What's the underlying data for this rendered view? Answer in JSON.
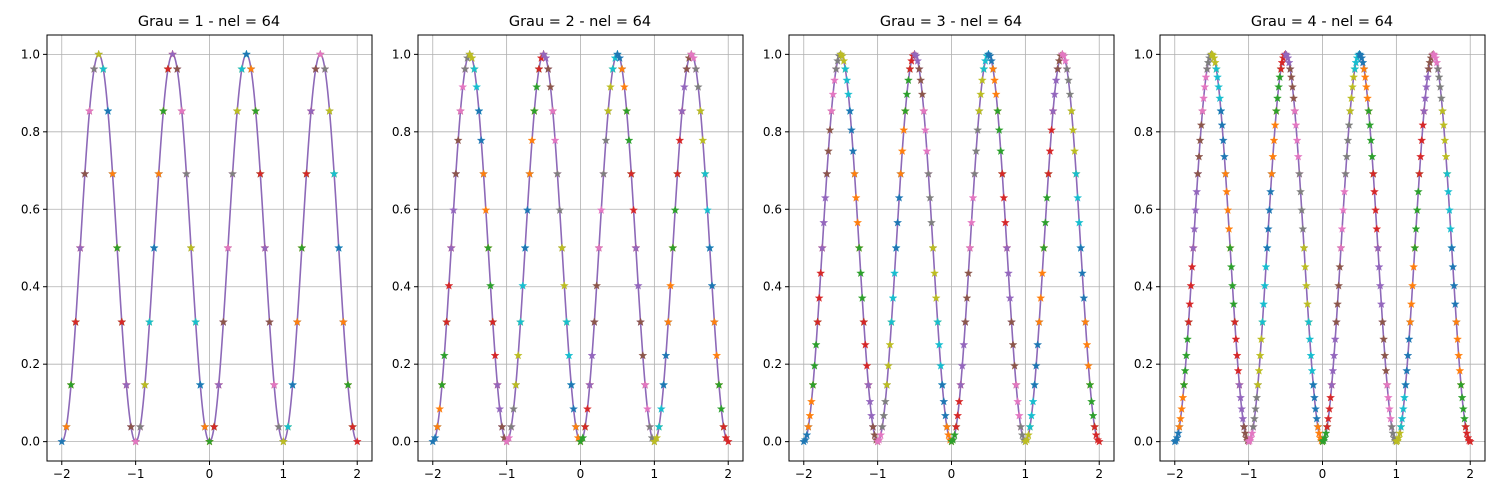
{
  "chart_data": [
    {
      "type": "line",
      "title": "Grau = 1 - nel = 64",
      "xlabel": "",
      "ylabel": "",
      "xlim": [
        -2.2,
        2.2
      ],
      "ylim": [
        -0.05,
        1.05
      ],
      "xticks": [
        -2,
        -1,
        0,
        1,
        2
      ],
      "yticks": [
        0.0,
        0.2,
        0.4,
        0.6,
        0.8,
        1.0
      ],
      "xtick_labels": [
        "−2",
        "−1",
        "0",
        "1",
        "2"
      ],
      "ytick_labels": [
        "0.0",
        "0.2",
        "0.4",
        "0.6",
        "0.8",
        "1.0"
      ],
      "grid": true,
      "function": "sin^2(pi*x)",
      "degree": 1,
      "elements": 64,
      "markers_per_element": 2,
      "line_color": "#8d69b8",
      "marker": "star"
    },
    {
      "type": "line",
      "title": "Grau = 2 - nel = 64",
      "xlabel": "",
      "ylabel": "",
      "xlim": [
        -2.2,
        2.2
      ],
      "ylim": [
        -0.05,
        1.05
      ],
      "xticks": [
        -2,
        -1,
        0,
        1,
        2
      ],
      "yticks": [
        0.0,
        0.2,
        0.4,
        0.6,
        0.8,
        1.0
      ],
      "xtick_labels": [
        "−2",
        "−1",
        "0",
        "1",
        "2"
      ],
      "ytick_labels": [
        "0.0",
        "0.2",
        "0.4",
        "0.6",
        "0.8",
        "1.0"
      ],
      "grid": true,
      "function": "sin^2(pi*x)",
      "degree": 2,
      "elements": 64,
      "markers_per_element": 3,
      "line_color": "#8d69b8",
      "marker": "star"
    },
    {
      "type": "line",
      "title": "Grau = 3 - nel = 64",
      "xlabel": "",
      "ylabel": "",
      "xlim": [
        -2.2,
        2.2
      ],
      "ylim": [
        -0.05,
        1.05
      ],
      "xticks": [
        -2,
        -1,
        0,
        1,
        2
      ],
      "yticks": [
        0.0,
        0.2,
        0.4,
        0.6,
        0.8,
        1.0
      ],
      "xtick_labels": [
        "−2",
        "−1",
        "0",
        "1",
        "2"
      ],
      "ytick_labels": [
        "0.0",
        "0.2",
        "0.4",
        "0.6",
        "0.8",
        "1.0"
      ],
      "grid": true,
      "function": "sin^2(pi*x)",
      "degree": 3,
      "elements": 64,
      "markers_per_element": 4,
      "line_color": "#8d69b8",
      "marker": "star"
    },
    {
      "type": "line",
      "title": "Grau = 4 - nel = 64",
      "xlabel": "",
      "ylabel": "",
      "xlim": [
        -2.2,
        2.2
      ],
      "ylim": [
        -0.05,
        1.05
      ],
      "xticks": [
        -2,
        -1,
        0,
        1,
        2
      ],
      "yticks": [
        0.0,
        0.2,
        0.4,
        0.6,
        0.8,
        1.0
      ],
      "xtick_labels": [
        "−2",
        "−1",
        "0",
        "1",
        "2"
      ],
      "ytick_labels": [
        "0.0",
        "0.2",
        "0.4",
        "0.6",
        "0.8",
        "1.0"
      ],
      "grid": true,
      "function": "sin^2(pi*x)",
      "degree": 4,
      "elements": 64,
      "markers_per_element": 5,
      "line_color": "#8d69b8",
      "marker": "star"
    }
  ],
  "marker_colors": [
    "#1f77b4",
    "#ff7f0e",
    "#2ca02c",
    "#d62728",
    "#9467bd",
    "#8c564b",
    "#e377c2",
    "#7f7f7f",
    "#bcbd22",
    "#17becf"
  ],
  "grid_color": "#b0b0b0"
}
